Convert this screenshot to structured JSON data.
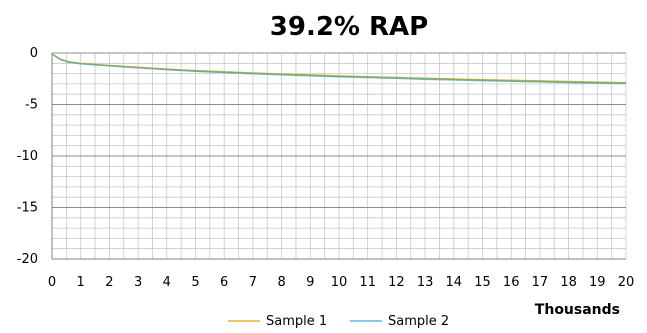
{
  "chart_data": {
    "type": "line",
    "title": "39.2% RAP",
    "xlabel": "",
    "ylabel": "",
    "x_unit_label": "Thousands",
    "xlim": [
      0,
      20
    ],
    "ylim": [
      -20,
      0
    ],
    "x_ticks": [
      "0",
      "1",
      "2",
      "3",
      "4",
      "5",
      "6",
      "7",
      "8",
      "9",
      "10",
      "11",
      "12",
      "13",
      "14",
      "15",
      "16",
      "17",
      "18",
      "19",
      "20"
    ],
    "y_ticks": [
      "0",
      "-5",
      "-10",
      "-15",
      "-20"
    ],
    "grid": true,
    "legend_position": "bottom",
    "x": [
      0,
      0.3,
      0.6,
      1,
      1.5,
      2,
      3,
      4,
      5,
      6,
      7,
      8,
      9,
      10,
      11,
      12,
      13,
      14,
      15,
      16,
      17,
      18,
      19,
      20
    ],
    "series": [
      {
        "name": "Sample 1",
        "color": "#e8b030",
        "values": [
          -0.1,
          -0.6,
          -0.85,
          -1.0,
          -1.1,
          -1.2,
          -1.38,
          -1.55,
          -1.7,
          -1.82,
          -1.93,
          -2.03,
          -2.12,
          -2.21,
          -2.29,
          -2.37,
          -2.44,
          -2.51,
          -2.58,
          -2.64,
          -2.7,
          -2.76,
          -2.82,
          -2.87
        ]
      },
      {
        "name": "Sample 2",
        "color": "#5bb8d8",
        "values": [
          -0.1,
          -0.65,
          -0.9,
          -1.05,
          -1.15,
          -1.25,
          -1.45,
          -1.62,
          -1.78,
          -1.9,
          -2.02,
          -2.12,
          -2.22,
          -2.31,
          -2.39,
          -2.47,
          -2.55,
          -2.62,
          -2.69,
          -2.75,
          -2.81,
          -2.87,
          -2.92,
          -2.97
        ]
      }
    ],
    "overlay_color": "#7fa86a"
  }
}
